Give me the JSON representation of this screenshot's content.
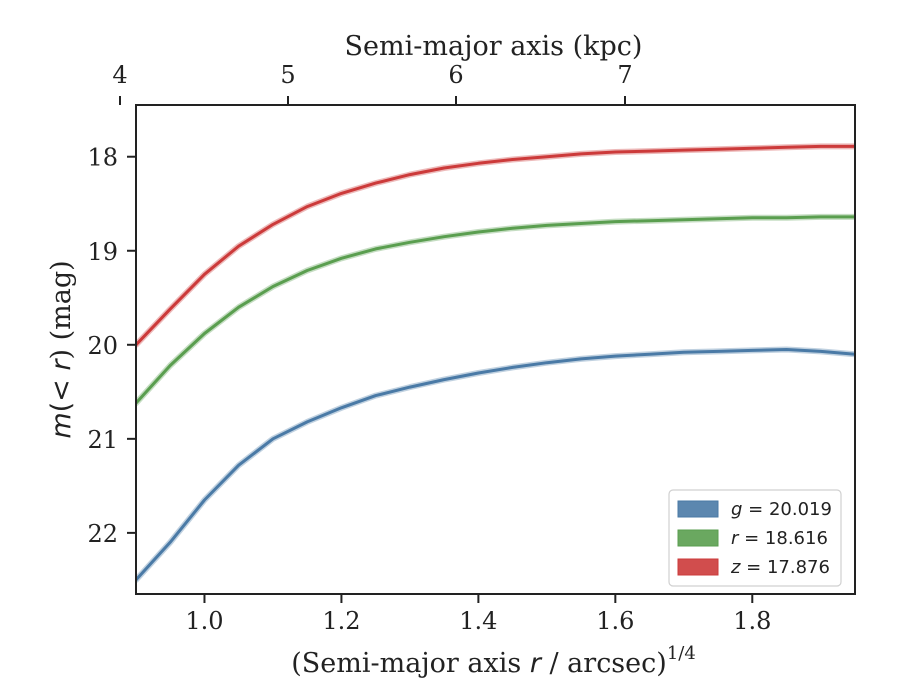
{
  "chart_data": {
    "type": "line",
    "xlabel_prefix": "(Semi-major axis ",
    "xlabel_var": "r",
    "xlabel_suffix": " / arcsec)",
    "xlabel_exp": "1/4",
    "top_xlabel": "Semi-major axis (kpc)",
    "ylabel_prefix": "m",
    "ylabel_mid": "(< ",
    "ylabel_var": "r",
    "ylabel_suffix": ") (mag)",
    "xlim": [
      0.9,
      1.95
    ],
    "ylim": [
      22.65,
      17.45
    ],
    "y_inverted": true,
    "x_ticks": [
      1.0,
      1.2,
      1.4,
      1.6,
      1.8
    ],
    "x_tick_labels": [
      "1.0",
      "1.2",
      "1.4",
      "1.6",
      "1.8"
    ],
    "y_ticks": [
      18,
      19,
      20,
      21,
      22
    ],
    "y_tick_labels": [
      "18",
      "19",
      "20",
      "21",
      "22"
    ],
    "top_ticks_kpc": [
      4,
      5,
      6,
      7
    ],
    "top_tick_labels": [
      "4",
      "5",
      "6",
      "7"
    ],
    "top_ticks_x": [
      0.876,
      1.122,
      1.368,
      1.614
    ],
    "legend_position": "lower-right",
    "series": [
      {
        "name": "g",
        "label": "= 20.019",
        "color": "#4a7aa6",
        "x": [
          0.9,
          0.95,
          1.0,
          1.05,
          1.1,
          1.15,
          1.2,
          1.25,
          1.3,
          1.35,
          1.4,
          1.45,
          1.5,
          1.55,
          1.6,
          1.65,
          1.7,
          1.75,
          1.8,
          1.85,
          1.9,
          1.95
        ],
        "y": [
          22.5,
          22.1,
          21.65,
          21.28,
          21.0,
          20.82,
          20.67,
          20.54,
          20.45,
          20.37,
          20.3,
          20.24,
          20.19,
          20.15,
          20.12,
          20.1,
          20.08,
          20.07,
          20.06,
          20.05,
          20.07,
          20.1
        ]
      },
      {
        "name": "r",
        "label": "= 18.616",
        "color": "#5a9e4f",
        "x": [
          0.9,
          0.95,
          1.0,
          1.05,
          1.1,
          1.15,
          1.2,
          1.25,
          1.3,
          1.35,
          1.4,
          1.45,
          1.5,
          1.55,
          1.6,
          1.65,
          1.7,
          1.75,
          1.8,
          1.85,
          1.9,
          1.95
        ],
        "y": [
          20.62,
          20.22,
          19.88,
          19.6,
          19.38,
          19.21,
          19.08,
          18.98,
          18.91,
          18.85,
          18.8,
          18.76,
          18.73,
          18.71,
          18.69,
          18.68,
          18.67,
          18.66,
          18.65,
          18.65,
          18.64,
          18.64
        ]
      },
      {
        "name": "z",
        "label": "= 17.876",
        "color": "#cc3a3a",
        "x": [
          0.9,
          0.95,
          1.0,
          1.05,
          1.1,
          1.15,
          1.2,
          1.25,
          1.3,
          1.35,
          1.4,
          1.45,
          1.5,
          1.55,
          1.6,
          1.65,
          1.7,
          1.75,
          1.8,
          1.85,
          1.9,
          1.95
        ],
        "y": [
          20.0,
          19.62,
          19.25,
          18.95,
          18.72,
          18.53,
          18.39,
          18.28,
          18.19,
          18.12,
          18.07,
          18.03,
          18.0,
          17.97,
          17.95,
          17.94,
          17.93,
          17.92,
          17.91,
          17.9,
          17.89,
          17.89
        ]
      }
    ]
  }
}
